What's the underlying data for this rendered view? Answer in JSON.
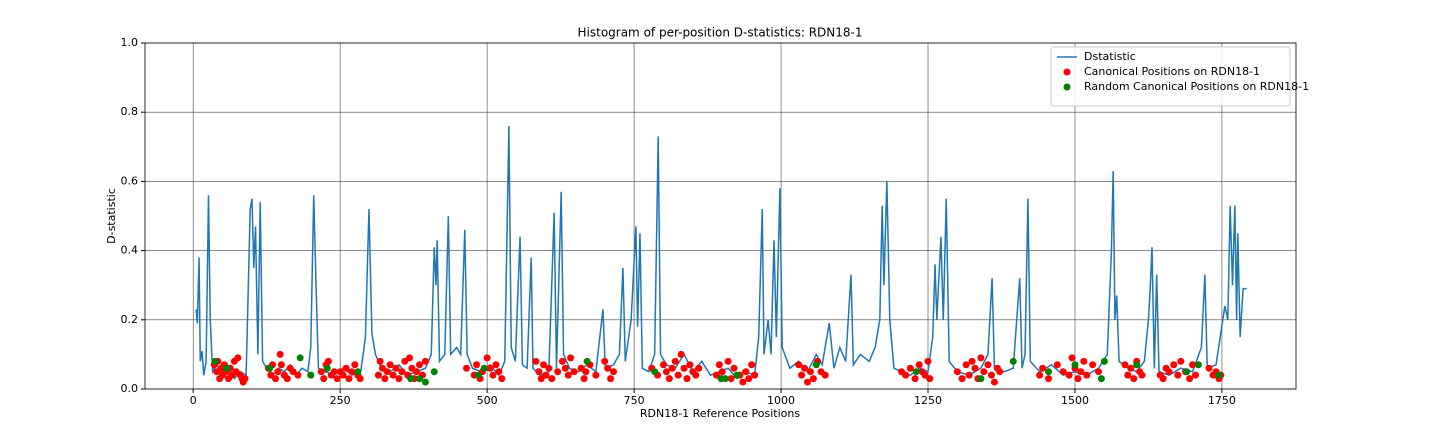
{
  "chart_data": {
    "type": "line",
    "title": "Histogram of per-position D-statistics: RDN18-1",
    "xlabel": "RDN18-1 Reference Positions",
    "ylabel": "D-statistic",
    "xlim": [
      -82,
      1876
    ],
    "ylim": [
      0,
      1
    ],
    "xticks": [
      0,
      250,
      500,
      750,
      1000,
      1250,
      1500,
      1750
    ],
    "yticks": [
      {
        "value": 0,
        "label": "0.0"
      },
      0.2,
      0.4,
      0.6,
      0.8,
      {
        "value": 1,
        "label": "1.0"
      }
    ],
    "grid": true,
    "legend": "upper right",
    "series": [
      {
        "name": "Dstatistic",
        "type": "line",
        "color": "#1f77b4",
        "x": [
          5,
          7,
          10,
          12,
          15,
          18,
          22,
          26,
          29,
          33,
          40,
          50,
          60,
          70,
          80,
          90,
          97,
          100,
          103,
          106,
          110,
          114,
          118,
          125,
          135,
          145,
          155,
          165,
          175,
          185,
          195,
          200,
          205,
          209,
          213,
          225,
          240,
          255,
          270,
          285,
          293,
          299,
          304,
          310,
          320,
          335,
          350,
          365,
          380,
          395,
          405,
          410,
          413,
          415,
          419,
          428,
          434,
          438,
          448,
          455,
          462,
          466,
          475,
          490,
          505,
          520,
          530,
          537,
          541,
          548,
          556,
          560,
          568,
          575,
          578,
          590,
          605,
          614,
          618,
          626,
          630,
          640,
          655,
          670,
          685,
          697,
          701,
          715,
          725,
          731,
          735,
          745,
          753,
          756,
          760,
          764,
          775,
          785,
          791,
          795,
          805,
          820,
          835,
          850,
          865,
          880,
          895,
          910,
          925,
          940,
          955,
          962,
          968,
          971,
          978,
          983,
          988,
          992,
          998,
          1002,
          1015,
          1030,
          1045,
          1060,
          1070,
          1082,
          1090,
          1100,
          1110,
          1119,
          1123,
          1135,
          1150,
          1160,
          1168,
          1172,
          1175,
          1180,
          1185,
          1192,
          1205,
          1220,
          1235,
          1250,
          1258,
          1262,
          1265,
          1272,
          1276,
          1281,
          1286,
          1300,
          1320,
          1340,
          1352,
          1359,
          1363,
          1380,
          1395,
          1406,
          1410,
          1415,
          1420,
          1424,
          1440,
          1460,
          1480,
          1500,
          1520,
          1540,
          1555,
          1562,
          1565,
          1568,
          1571,
          1575,
          1590,
          1605,
          1618,
          1625,
          1628,
          1631,
          1635,
          1639,
          1643,
          1660,
          1680,
          1700,
          1715,
          1721,
          1725,
          1740,
          1755,
          1760,
          1764,
          1768,
          1772,
          1775,
          1777,
          1781,
          1786,
          1792
        ],
        "values": [
          0.23,
          0.19,
          0.38,
          0.08,
          0.11,
          0.04,
          0.08,
          0.56,
          0.2,
          0.05,
          0.07,
          0.04,
          0.06,
          0.03,
          0.05,
          0.04,
          0.52,
          0.55,
          0.35,
          0.47,
          0.1,
          0.54,
          0.08,
          0.06,
          0.04,
          0.06,
          0.05,
          0.07,
          0.04,
          0.06,
          0.05,
          0.12,
          0.56,
          0.3,
          0.06,
          0.05,
          0.04,
          0.06,
          0.04,
          0.05,
          0.15,
          0.52,
          0.16,
          0.1,
          0.06,
          0.05,
          0.07,
          0.04,
          0.05,
          0.06,
          0.1,
          0.41,
          0.3,
          0.43,
          0.08,
          0.1,
          0.5,
          0.1,
          0.12,
          0.1,
          0.46,
          0.1,
          0.06,
          0.05,
          0.07,
          0.04,
          0.08,
          0.76,
          0.12,
          0.08,
          0.44,
          0.07,
          0.06,
          0.38,
          0.06,
          0.04,
          0.05,
          0.51,
          0.06,
          0.57,
          0.1,
          0.06,
          0.05,
          0.07,
          0.05,
          0.23,
          0.06,
          0.07,
          0.1,
          0.35,
          0.08,
          0.2,
          0.47,
          0.18,
          0.45,
          0.06,
          0.05,
          0.1,
          0.73,
          0.1,
          0.07,
          0.06,
          0.1,
          0.05,
          0.08,
          0.04,
          0.05,
          0.06,
          0.03,
          0.05,
          0.04,
          0.15,
          0.52,
          0.1,
          0.2,
          0.1,
          0.43,
          0.15,
          0.58,
          0.12,
          0.06,
          0.08,
          0.05,
          0.1,
          0.07,
          0.19,
          0.06,
          0.12,
          0.08,
          0.33,
          0.07,
          0.1,
          0.08,
          0.12,
          0.2,
          0.53,
          0.3,
          0.6,
          0.2,
          0.06,
          0.05,
          0.04,
          0.06,
          0.05,
          0.15,
          0.36,
          0.2,
          0.44,
          0.2,
          0.55,
          0.08,
          0.05,
          0.04,
          0.06,
          0.1,
          0.32,
          0.06,
          0.05,
          0.06,
          0.32,
          0.06,
          0.1,
          0.55,
          0.08,
          0.05,
          0.07,
          0.04,
          0.05,
          0.04,
          0.06,
          0.1,
          0.4,
          0.63,
          0.2,
          0.27,
          0.08,
          0.06,
          0.05,
          0.08,
          0.2,
          0.29,
          0.41,
          0.06,
          0.33,
          0.05,
          0.04,
          0.06,
          0.05,
          0.12,
          0.33,
          0.06,
          0.07,
          0.24,
          0.2,
          0.53,
          0.3,
          0.53,
          0.2,
          0.45,
          0.15,
          0.29,
          0.29
        ]
      },
      {
        "name": "Canonical Positions on RDN18-1",
        "type": "scatter",
        "color": "#ff0000",
        "x": [
          36,
          40,
          42,
          45,
          48,
          50,
          53,
          56,
          60,
          63,
          66,
          70,
          73,
          76,
          80,
          83,
          85,
          88,
          128,
          132,
          135,
          140,
          144,
          148,
          150,
          155,
          160,
          165,
          170,
          178,
          218,
          222,
          226,
          230,
          235,
          240,
          245,
          250,
          255,
          260,
          265,
          270,
          275,
          280,
          284,
          315,
          318,
          322,
          326,
          330,
          335,
          340,
          345,
          350,
          355,
          360,
          365,
          368,
          372,
          376,
          380,
          385,
          390,
          395,
          465,
          478,
          482,
          488,
          492,
          500,
          505,
          510,
          515,
          520,
          525,
          583,
          588,
          592,
          596,
          600,
          605,
          610,
          620,
          628,
          633,
          638,
          642,
          648,
          660,
          665,
          668,
          675,
          685,
          700,
          705,
          710,
          715,
          780,
          790,
          800,
          805,
          810,
          815,
          820,
          825,
          830,
          835,
          840,
          845,
          850,
          855,
          860,
          890,
          895,
          900,
          910,
          915,
          920,
          930,
          935,
          940,
          945,
          950,
          955,
          1030,
          1035,
          1040,
          1045,
          1050,
          1055,
          1062,
          1068,
          1075,
          1205,
          1212,
          1220,
          1228,
          1235,
          1240,
          1245,
          1250,
          1253,
          1300,
          1308,
          1315,
          1320,
          1325,
          1330,
          1335,
          1340,
          1345,
          1352,
          1358,
          1363,
          1368,
          1372,
          1440,
          1445,
          1455,
          1470,
          1480,
          1490,
          1495,
          1500,
          1505,
          1510,
          1515,
          1520,
          1530,
          1540,
          1585,
          1590,
          1595,
          1600,
          1605,
          1610,
          1614,
          1645,
          1650,
          1655,
          1660,
          1668,
          1675,
          1680,
          1688,
          1695,
          1700,
          1705,
          1728,
          1735,
          1740,
          1745,
          1748
        ],
        "values": [
          0.07,
          0.05,
          0.08,
          0.03,
          0.06,
          0.04,
          0.07,
          0.05,
          0.03,
          0.06,
          0.04,
          0.08,
          0.05,
          0.09,
          0.04,
          0.03,
          0.02,
          0.03,
          0.06,
          0.04,
          0.07,
          0.03,
          0.05,
          0.1,
          0.07,
          0.04,
          0.03,
          0.06,
          0.05,
          0.04,
          0.05,
          0.03,
          0.07,
          0.08,
          0.04,
          0.05,
          0.03,
          0.05,
          0.04,
          0.06,
          0.03,
          0.05,
          0.07,
          0.04,
          0.03,
          0.04,
          0.08,
          0.06,
          0.03,
          0.05,
          0.07,
          0.04,
          0.06,
          0.03,
          0.05,
          0.08,
          0.04,
          0.09,
          0.06,
          0.03,
          0.05,
          0.07,
          0.04,
          0.08,
          0.06,
          0.04,
          0.07,
          0.03,
          0.05,
          0.09,
          0.06,
          0.04,
          0.07,
          0.05,
          0.03,
          0.08,
          0.05,
          0.03,
          0.07,
          0.04,
          0.06,
          0.03,
          0.05,
          0.08,
          0.06,
          0.04,
          0.09,
          0.05,
          0.06,
          0.03,
          0.05,
          0.07,
          0.04,
          0.08,
          0.06,
          0.03,
          0.05,
          0.06,
          0.04,
          0.07,
          0.05,
          0.03,
          0.06,
          0.08,
          0.04,
          0.1,
          0.06,
          0.03,
          0.07,
          0.05,
          0.04,
          0.06,
          0.04,
          0.07,
          0.05,
          0.08,
          0.03,
          0.06,
          0.04,
          0.02,
          0.05,
          0.03,
          0.07,
          0.04,
          0.07,
          0.04,
          0.06,
          0.02,
          0.05,
          0.03,
          0.08,
          0.05,
          0.04,
          0.05,
          0.04,
          0.06,
          0.03,
          0.07,
          0.05,
          0.04,
          0.08,
          0.03,
          0.05,
          0.03,
          0.07,
          0.04,
          0.08,
          0.06,
          0.03,
          0.09,
          0.05,
          0.07,
          0.04,
          0.02,
          0.06,
          0.05,
          0.04,
          0.06,
          0.03,
          0.07,
          0.05,
          0.04,
          0.09,
          0.06,
          0.03,
          0.05,
          0.08,
          0.04,
          0.07,
          0.05,
          0.07,
          0.04,
          0.06,
          0.03,
          0.08,
          0.05,
          0.04,
          0.04,
          0.03,
          0.06,
          0.05,
          0.07,
          0.04,
          0.08,
          0.05,
          0.03,
          0.07,
          0.04,
          0.06,
          0.04,
          0.05,
          0.03,
          0.04
        ]
      },
      {
        "name": "Random Canonical Positions on RDN18-1",
        "type": "scatter",
        "color": "#008000",
        "x": [
          37,
          57,
          130,
          182,
          200,
          228,
          280,
          370,
          385,
          395,
          410,
          485,
          495,
          670,
          785,
          898,
          905,
          925,
          1060,
          1230,
          1340,
          1395,
          1455,
          1500,
          1545,
          1550,
          1605,
          1690,
          1710,
          1745
        ],
        "values": [
          0.08,
          0.06,
          0.06,
          0.09,
          0.04,
          0.06,
          0.05,
          0.03,
          0.03,
          0.02,
          0.05,
          0.04,
          0.06,
          0.08,
          0.05,
          0.03,
          0.03,
          0.04,
          0.07,
          0.05,
          0.03,
          0.08,
          0.05,
          0.07,
          0.03,
          0.08,
          0.07,
          0.05,
          0.07,
          0.04
        ]
      }
    ]
  }
}
